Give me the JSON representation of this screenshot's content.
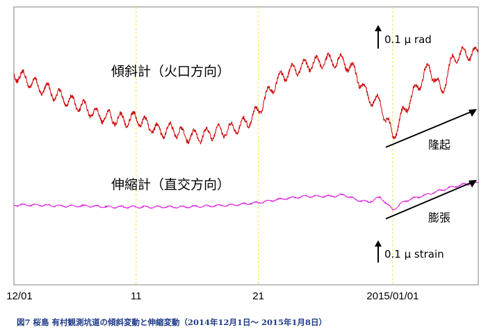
{
  "chart_data": {
    "type": "line",
    "x_ticks": [
      "12/01",
      "11",
      "21",
      "2015/01/01"
    ],
    "xlim": [
      "2014-12-01",
      "2015-01-08"
    ],
    "series": [
      {
        "name": "傾斜計（火口方向）",
        "color": "#cc0000",
        "unit": "μrad",
        "points": [
          [
            "2014-12-01",
            0.62
          ],
          [
            "2014-12-02",
            0.57
          ],
          [
            "2014-12-03",
            0.5
          ],
          [
            "2014-12-04",
            0.46
          ],
          [
            "2014-12-05",
            0.4
          ],
          [
            "2014-12-06",
            0.35
          ],
          [
            "2014-12-07",
            0.3
          ],
          [
            "2014-12-08",
            0.24
          ],
          [
            "2014-12-09",
            0.22
          ],
          [
            "2014-12-10",
            0.2
          ],
          [
            "2014-12-11",
            0.22
          ],
          [
            "2014-12-12",
            0.15
          ],
          [
            "2014-12-13",
            0.1
          ],
          [
            "2014-12-14",
            0.12
          ],
          [
            "2014-12-15",
            0.06
          ],
          [
            "2014-12-16",
            0.05
          ],
          [
            "2014-12-17",
            0.08
          ],
          [
            "2014-12-18",
            0.1
          ],
          [
            "2014-12-19",
            0.12
          ],
          [
            "2014-12-20",
            0.18
          ],
          [
            "2014-12-21",
            0.28
          ],
          [
            "2014-12-22",
            0.48
          ],
          [
            "2014-12-23",
            0.6
          ],
          [
            "2014-12-24",
            0.66
          ],
          [
            "2014-12-25",
            0.7
          ],
          [
            "2014-12-26",
            0.72
          ],
          [
            "2014-12-27",
            0.74
          ],
          [
            "2014-12-28",
            0.73
          ],
          [
            "2014-12-29",
            0.62
          ],
          [
            "2014-12-30",
            0.4
          ],
          [
            "2014-12-31",
            0.35
          ],
          [
            "2015-01-01",
            0.05
          ],
          [
            "2015-01-02",
            0.3
          ],
          [
            "2015-01-03",
            0.5
          ],
          [
            "2015-01-04",
            0.68
          ],
          [
            "2015-01-05",
            0.45
          ],
          [
            "2015-01-06",
            0.78
          ],
          [
            "2015-01-07",
            0.8
          ],
          [
            "2015-01-08",
            0.8
          ]
        ]
      },
      {
        "name": "伸縮計（直交方向）",
        "color": "#dd22dd",
        "unit": "μstrain",
        "points": [
          [
            "2014-12-01",
            0.14
          ],
          [
            "2014-12-03",
            0.14
          ],
          [
            "2014-12-05",
            0.12
          ],
          [
            "2014-12-07",
            0.12
          ],
          [
            "2014-12-09",
            0.1
          ],
          [
            "2014-12-11",
            0.1
          ],
          [
            "2014-12-13",
            0.1
          ],
          [
            "2014-12-15",
            0.1
          ],
          [
            "2014-12-17",
            0.12
          ],
          [
            "2014-12-19",
            0.14
          ],
          [
            "2014-12-21",
            0.19
          ],
          [
            "2014-12-23",
            0.27
          ],
          [
            "2014-12-25",
            0.32
          ],
          [
            "2014-12-27",
            0.32
          ],
          [
            "2014-12-28",
            0.35
          ],
          [
            "2014-12-29",
            0.25
          ],
          [
            "2014-12-30",
            0.2
          ],
          [
            "2014-12-31",
            0.3
          ],
          [
            "2015-01-01",
            0.04
          ],
          [
            "2015-01-02",
            0.22
          ],
          [
            "2015-01-03",
            0.3
          ],
          [
            "2015-01-04",
            0.37
          ],
          [
            "2015-01-05",
            0.45
          ],
          [
            "2015-01-06",
            0.52
          ],
          [
            "2015-01-07",
            0.57
          ],
          [
            "2015-01-08",
            0.6
          ]
        ]
      }
    ],
    "tilt_scale": "0.1 μ rad",
    "strain_scale": "0.1 μ strain",
    "tilt_trend_label": "隆起",
    "strain_trend_label": "膨張",
    "vertical_dashed_lines": [
      "2014-12-11",
      "2014-12-21",
      "2015-01-01"
    ],
    "dashed_line_color": "#f2e65a",
    "grid": false
  },
  "caption": "図7  桜島  有村観測坑道の傾斜変動と伸縮変動（2014年12月1日～ 2015年1月8日）"
}
